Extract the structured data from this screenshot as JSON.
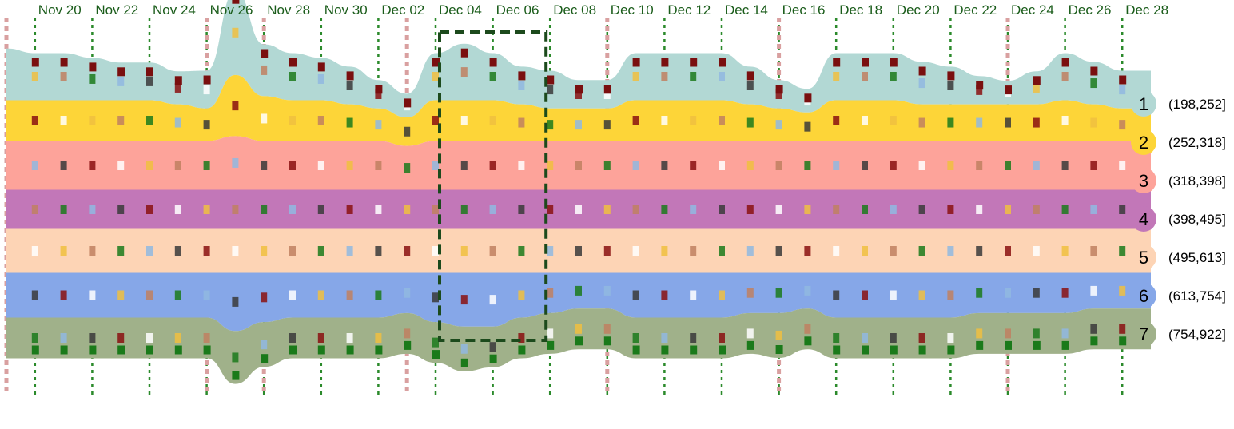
{
  "chart_data": {
    "type": "area",
    "subtype": "stacked streamgraph",
    "x_ticks": [
      "Nov 20",
      "Nov 22",
      "Nov 24",
      "Nov 26",
      "Nov 28",
      "Nov 30",
      "Dec 02",
      "Dec 04",
      "Dec 06",
      "Dec 08",
      "Dec 10",
      "Dec 12",
      "Dec 14",
      "Dec 16",
      "Dec 18",
      "Dec 20",
      "Dec 22",
      "Dec 24",
      "Dec 26",
      "Dec 28"
    ],
    "x_dates": [
      "Nov 19",
      "Nov 20",
      "Nov 21",
      "Nov 22",
      "Nov 23",
      "Nov 24",
      "Nov 25",
      "Nov 26",
      "Nov 27",
      "Nov 28",
      "Nov 29",
      "Nov 30",
      "Dec 01",
      "Dec 02",
      "Dec 03",
      "Dec 04",
      "Dec 05",
      "Dec 06",
      "Dec 07",
      "Dec 08",
      "Dec 09",
      "Dec 10",
      "Dec 11",
      "Dec 12",
      "Dec 13",
      "Dec 14",
      "Dec 15",
      "Dec 16",
      "Dec 17",
      "Dec 18",
      "Dec 19",
      "Dec 20",
      "Dec 21",
      "Dec 22",
      "Dec 23",
      "Dec 24",
      "Dec 25",
      "Dec 26",
      "Dec 27",
      "Dec 28",
      "Dec 29"
    ],
    "legend_position": "right",
    "series": [
      {
        "name": "1",
        "range": "(198,252]",
        "color": "#b2d8d4"
      },
      {
        "name": "2",
        "range": "(252,318]",
        "color": "#fdd538"
      },
      {
        "name": "3",
        "range": "(318,398]",
        "color": "#fda39a"
      },
      {
        "name": "4",
        "range": "(398,495]",
        "color": "#c277b8"
      },
      {
        "name": "5",
        "range": "(495,613]",
        "color": "#fdd4b5"
      },
      {
        "name": "6",
        "range": "(613,754]",
        "color": "#86a7e8"
      },
      {
        "name": "7",
        "range": "(754,922]",
        "color": "#a0b18a"
      }
    ],
    "band_depth": [
      [
        1.1,
        1.0,
        1.0,
        0.9,
        0.8,
        0.8,
        0.7,
        0.8,
        1.8,
        1.1,
        1.0,
        0.9,
        0.8,
        0.6,
        0.5,
        1.0,
        1.2,
        1.0,
        0.8,
        0.8,
        0.6,
        0.6,
        1.0,
        1.0,
        1.0,
        1.0,
        0.8,
        0.6,
        0.5,
        1.0,
        1.0,
        1.0,
        0.9,
        0.8,
        0.6,
        0.5,
        0.7,
        1.0,
        0.9,
        0.8,
        0.8
      ],
      [
        1.0,
        1.0,
        1.0,
        1.0,
        1.0,
        1.0,
        0.9,
        0.8,
        1.5,
        1.1,
        1.0,
        1.0,
        0.9,
        0.8,
        0.7,
        1.0,
        1.0,
        1.0,
        0.9,
        0.8,
        0.8,
        0.8,
        1.0,
        1.0,
        1.0,
        1.0,
        0.9,
        0.8,
        0.7,
        1.0,
        1.0,
        1.0,
        0.9,
        0.9,
        0.9,
        0.9,
        0.9,
        1.0,
        0.9,
        0.8,
        0.8
      ],
      [
        1.0,
        1.0,
        1.0,
        1.0,
        1.0,
        1.0,
        1.0,
        1.0,
        1.1,
        1.0,
        1.0,
        1.0,
        1.0,
        1.0,
        0.9,
        1.0,
        1.0,
        1.0,
        1.0,
        1.0,
        1.0,
        1.0,
        1.0,
        1.0,
        1.0,
        1.0,
        1.0,
        1.0,
        1.0,
        1.0,
        1.0,
        1.0,
        1.0,
        1.0,
        1.0,
        1.0,
        1.0,
        1.0,
        1.0,
        1.0,
        1.0
      ],
      [
        1.0,
        1.0,
        1.0,
        1.0,
        1.0,
        1.0,
        1.0,
        1.0,
        1.0,
        1.0,
        1.0,
        1.0,
        1.0,
        1.0,
        1.0,
        1.0,
        1.0,
        1.0,
        1.0,
        1.0,
        1.0,
        1.0,
        1.0,
        1.0,
        1.0,
        1.0,
        1.0,
        1.0,
        1.0,
        1.0,
        1.0,
        1.0,
        1.0,
        1.0,
        1.0,
        1.0,
        1.0,
        1.0,
        1.0,
        1.0,
        1.0
      ],
      [
        1.0,
        1.0,
        1.0,
        1.0,
        1.0,
        1.0,
        1.0,
        1.0,
        1.0,
        1.0,
        1.0,
        1.0,
        1.0,
        1.0,
        1.0,
        1.0,
        1.0,
        1.0,
        1.0,
        1.0,
        1.0,
        1.0,
        1.0,
        1.0,
        1.0,
        1.0,
        1.0,
        1.0,
        1.0,
        1.0,
        1.0,
        1.0,
        1.0,
        1.0,
        1.0,
        1.0,
        1.0,
        1.0,
        1.0,
        1.0,
        1.0
      ],
      [
        1.0,
        1.0,
        1.0,
        1.0,
        1.0,
        1.0,
        1.0,
        1.0,
        1.3,
        1.1,
        1.0,
        1.0,
        1.0,
        1.0,
        0.9,
        1.1,
        1.2,
        1.2,
        1.0,
        0.9,
        0.8,
        0.8,
        1.0,
        1.0,
        1.0,
        1.0,
        0.9,
        0.9,
        0.8,
        1.0,
        1.0,
        1.0,
        1.0,
        1.0,
        0.9,
        0.9,
        0.9,
        0.9,
        0.8,
        0.8,
        0.8
      ],
      [
        1.0,
        1.0,
        1.0,
        1.0,
        1.0,
        1.0,
        1.0,
        1.0,
        1.3,
        1.1,
        1.0,
        1.0,
        1.0,
        1.0,
        1.0,
        1.0,
        1.1,
        1.0,
        1.0,
        1.0,
        1.0,
        1.0,
        1.0,
        1.0,
        1.0,
        1.0,
        1.0,
        1.1,
        1.0,
        1.0,
        1.0,
        1.0,
        1.0,
        1.0,
        1.0,
        1.0,
        1.0,
        1.0,
        1.0,
        1.0,
        1.0
      ]
    ],
    "highlight_range": [
      "Dec 04",
      "Dec 08"
    ],
    "grid": "vertical dotted lines at each labeled date"
  }
}
